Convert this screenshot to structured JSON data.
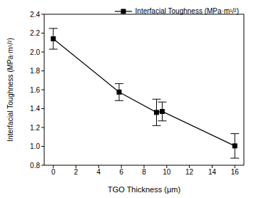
{
  "chart_data": {
    "type": "line",
    "x_label": "TGO Thickness (μm)",
    "y_label": "Interfacial Toughness (MPa·m¹/²)",
    "x": [
      0,
      5.8,
      9.1,
      9.6,
      16
    ],
    "series": [
      {
        "name": "Interfacial Toughness (MPa·m¹/²)",
        "color": "#000000",
        "marker": "square",
        "line_style": "solid",
        "values": [
          2.14,
          1.575,
          1.36,
          1.37,
          1.005
        ],
        "error": [
          0.11,
          0.09,
          0.14,
          0.1,
          0.13
        ]
      }
    ],
    "xlim": [
      -0.8,
      16.8
    ],
    "xticks": [
      0,
      2,
      4,
      6,
      8,
      10,
      12,
      14,
      16
    ],
    "ylim": [
      0.8,
      2.4
    ],
    "yticks": [
      0.8,
      {
        "value": 1,
        "label": "1.0"
      },
      1.2,
      1.4,
      1.6,
      1.8,
      {
        "value": 2,
        "label": "2.0"
      },
      2.2,
      2.4
    ],
    "legend": "upper right"
  }
}
